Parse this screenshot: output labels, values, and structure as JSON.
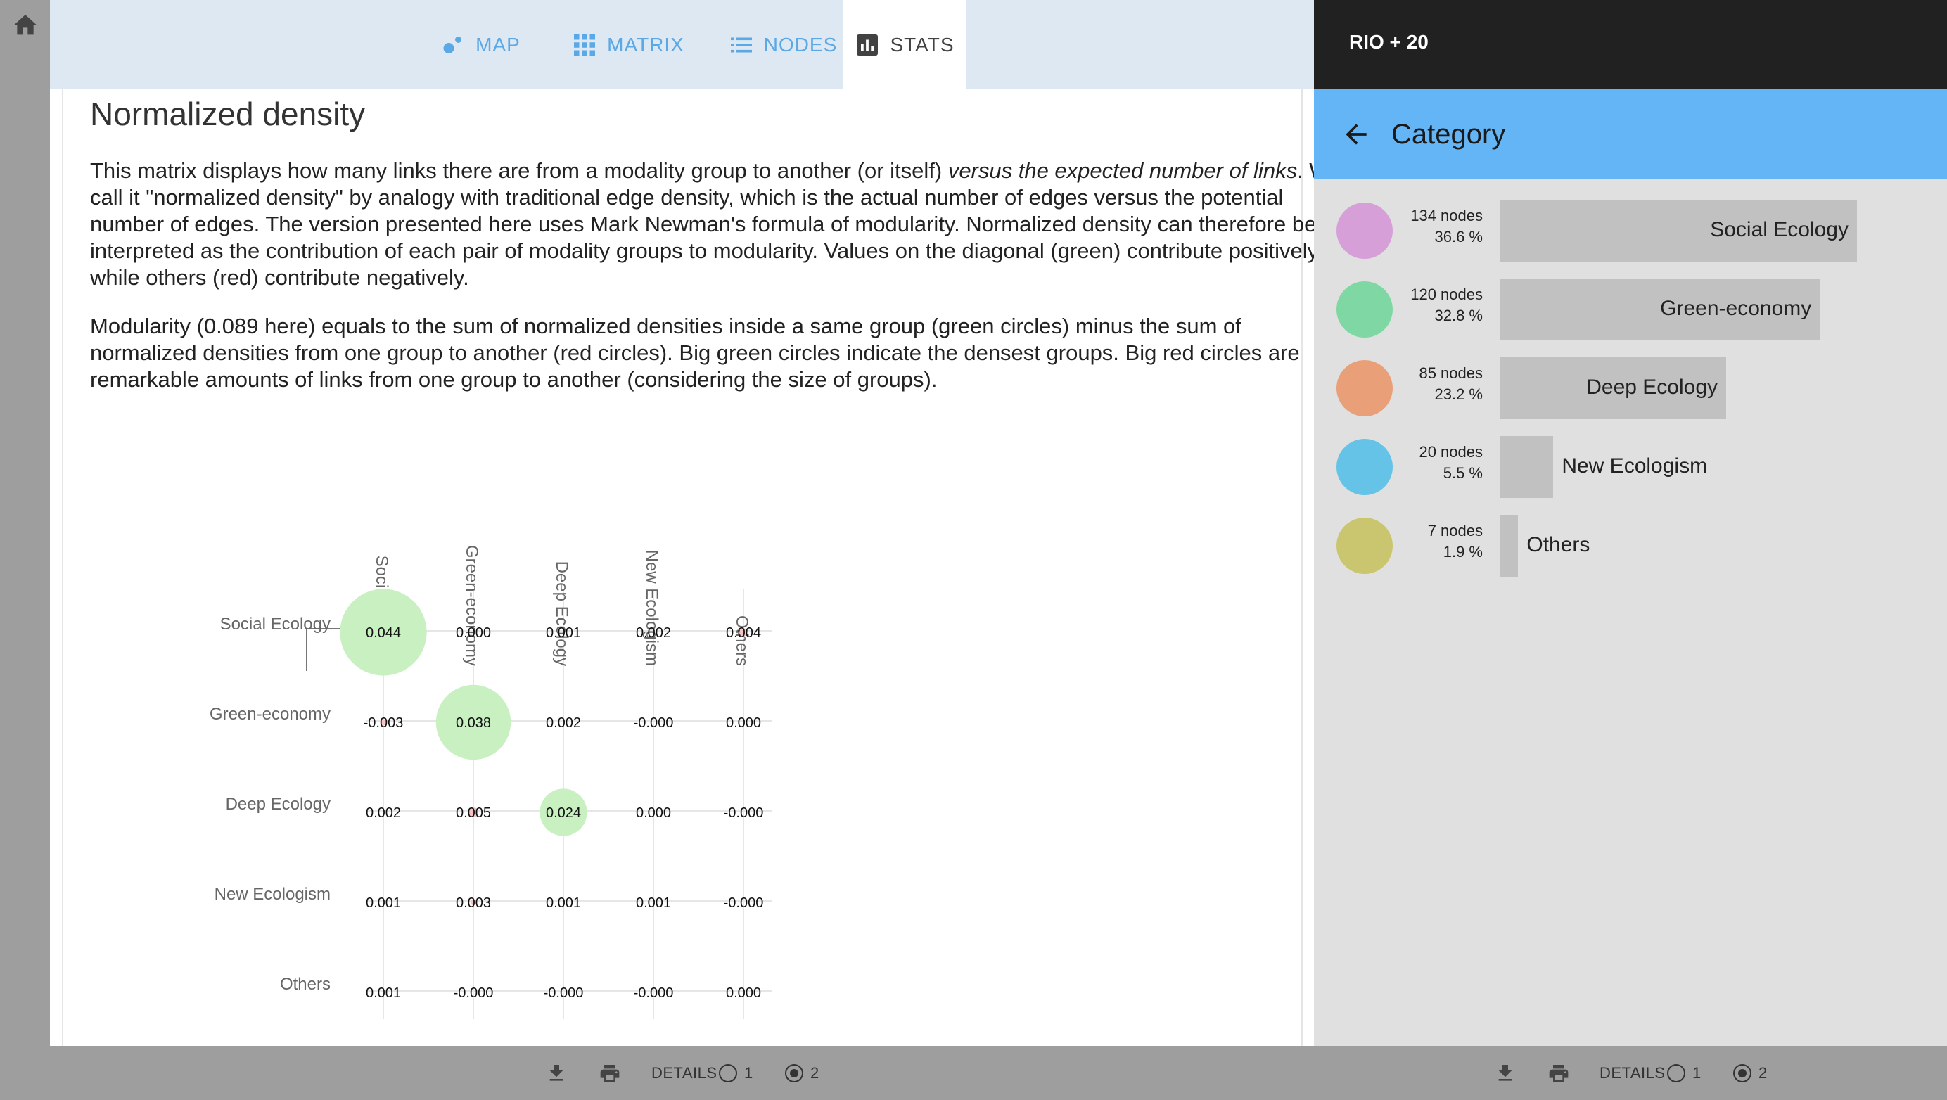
{
  "tabs": [
    {
      "id": "map",
      "label": "MAP",
      "icon": "map-icon"
    },
    {
      "id": "matrix",
      "label": "MATRIX",
      "icon": "matrix-grid-icon"
    },
    {
      "id": "nodes",
      "label": "NODES",
      "icon": "list-icon"
    },
    {
      "id": "stats",
      "label": "STATS",
      "icon": "bar-chart-icon",
      "active": true
    }
  ],
  "content": {
    "title": "Normalized density",
    "para1_a": "This matrix displays how many links there are from a modality group to another (or itself) ",
    "para1_em": "versus the expected number of links",
    "para1_b": ". We call it \"normalized density\" by analogy with traditional edge density, which is the actual number of edges versus the potential number of edges. The version presented here uses Mark Newman's formula of modularity. Normalized density can therefore be interpreted as the contribution of each pair of modality groups to modularity. Values on the diagonal (green) contribute positively while others (red) contribute negatively.",
    "para2": "Modularity (0.089 here) equals to the sum of normalized densities inside a same group (green circles) minus the sum of normalized densities from one group to another (red circles). Big green circles indicate the densest groups. Big red circles are remarkable amounts of links from one group to another (considering the size of groups)."
  },
  "chart_data": {
    "type": "matrix",
    "groups": [
      "Social Ecology",
      "Green-economy",
      "Deep Ecology",
      "New Ecologism",
      "Others"
    ],
    "values": [
      [
        "0.044",
        "0.000",
        "0.001",
        "0.002",
        "0.004"
      ],
      [
        "-0.003",
        "0.038",
        "0.002",
        "-0.000",
        "0.000"
      ],
      [
        "0.002",
        "0.005",
        "0.024",
        "0.000",
        "-0.000"
      ],
      [
        "0.001",
        "0.003",
        "0.001",
        "0.001",
        "-0.000"
      ],
      [
        "0.001",
        "-0.000",
        "-0.000",
        "-0.000",
        "0.000"
      ]
    ],
    "colors": {
      "positive": "#c8f0c0",
      "negative": "#f7c4c4"
    }
  },
  "right_panel": {
    "title": "RIO + 20",
    "subtitle": "Category",
    "categories": [
      {
        "name": "Social Ecology",
        "count": "134 nodes",
        "pct": "36.6 %",
        "value": 36.6,
        "color": "#d79fd8"
      },
      {
        "name": "Green-economy",
        "count": "120 nodes",
        "pct": "32.8 %",
        "value": 32.8,
        "color": "#7fd7a4"
      },
      {
        "name": "Deep Ecology",
        "count": "85 nodes",
        "pct": "23.2 %",
        "value": 23.2,
        "color": "#e9a079"
      },
      {
        "name": "New Ecologism",
        "count": "20 nodes",
        "pct": "5.5 %",
        "value": 5.5,
        "color": "#66c3e8"
      },
      {
        "name": "Others",
        "count": "7 nodes",
        "pct": "1.9 %",
        "value": 1.9,
        "color": "#c9c66f"
      }
    ]
  },
  "footer": {
    "details_label": "DETAILS",
    "option1": "1",
    "option2": "2"
  }
}
